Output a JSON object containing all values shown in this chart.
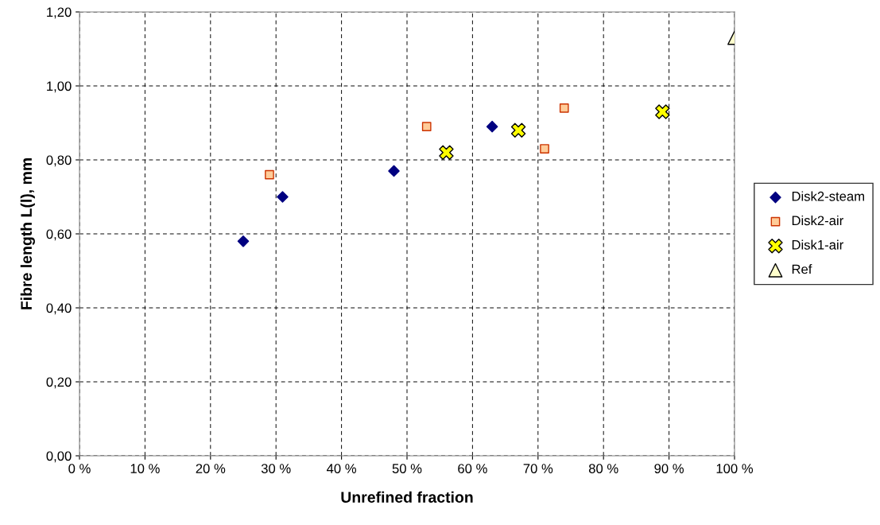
{
  "chart_data": {
    "type": "scatter",
    "xlabel": "Unrefined fraction",
    "ylabel": "Fibre length L(l), mm",
    "series": [
      {
        "name": "Disk2-steam",
        "color": "#000080",
        "marker": "diamond",
        "x": [
          25,
          31,
          48,
          63
        ],
        "values": [
          0.58,
          0.7,
          0.77,
          0.89
        ]
      },
      {
        "name": "Disk2-air",
        "color": "#ffcc99",
        "marker": "square",
        "x": [
          29,
          53,
          71,
          74
        ],
        "values": [
          0.76,
          0.89,
          0.83,
          0.94
        ]
      },
      {
        "name": "Disk1-air",
        "color": "#ffff00",
        "marker": "cross",
        "x": [
          56,
          67,
          89
        ],
        "values": [
          0.82,
          0.88,
          0.93
        ]
      },
      {
        "name": "Ref",
        "color": "#ffffcc",
        "marker": "triangle",
        "x": [
          100
        ],
        "values": [
          1.13
        ]
      }
    ],
    "xlim": [
      0,
      100
    ],
    "xticks": [
      {
        "value": 0,
        "label": "0 %"
      },
      {
        "value": 10,
        "label": "10 %"
      },
      {
        "value": 20,
        "label": "20 %"
      },
      {
        "value": 30,
        "label": "30 %"
      },
      {
        "value": 40,
        "label": "40 %"
      },
      {
        "value": 50,
        "label": "50 %"
      },
      {
        "value": 60,
        "label": "60 %"
      },
      {
        "value": 70,
        "label": "70 %"
      },
      {
        "value": 80,
        "label": "80 %"
      },
      {
        "value": 90,
        "label": "90 %"
      },
      {
        "value": 100,
        "label": "100 %"
      }
    ],
    "ylim": [
      0,
      1.2
    ],
    "yticks": [
      {
        "value": 0,
        "label": "0,00"
      },
      {
        "value": 0.2,
        "label": "0,20"
      },
      {
        "value": 0.4,
        "label": "0,40"
      },
      {
        "value": 0.6,
        "label": "0,60"
      },
      {
        "value": 0.8,
        "label": "0,80"
      },
      {
        "value": 1.0,
        "label": "1,00"
      },
      {
        "value": 1.2,
        "label": "1,20"
      }
    ],
    "grid": true,
    "legend": "right"
  }
}
